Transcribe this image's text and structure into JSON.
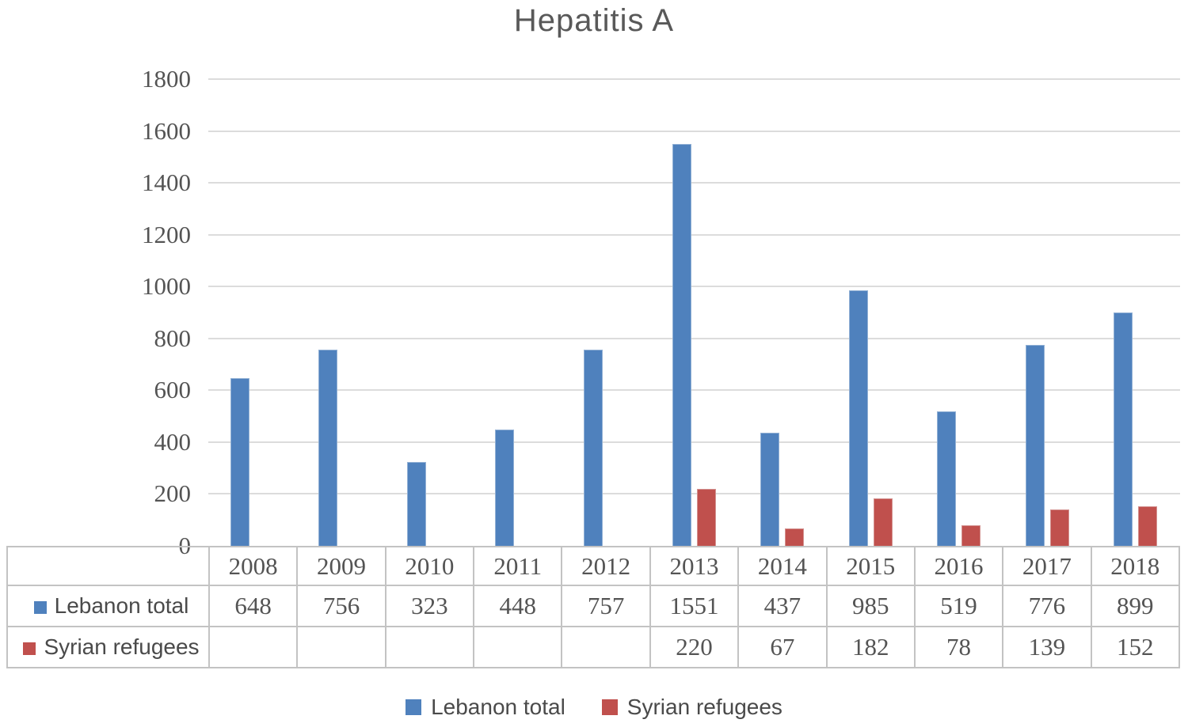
{
  "title": "Hepatitis A",
  "chart_data": {
    "type": "bar",
    "title": "Hepatitis A",
    "categories": [
      "2008",
      "2009",
      "2010",
      "2011",
      "2012",
      "2013",
      "2014",
      "2015",
      "2016",
      "2017",
      "2018"
    ],
    "series": [
      {
        "name": "Lebanon total",
        "color": "#4F81BD",
        "values": [
          648,
          756,
          323,
          448,
          757,
          1551,
          437,
          985,
          519,
          776,
          899
        ]
      },
      {
        "name": "Syrian refugees",
        "color": "#C0504D",
        "values": [
          null,
          null,
          null,
          null,
          null,
          220,
          67,
          182,
          78,
          139,
          152
        ]
      }
    ],
    "xlabel": "",
    "ylabel": "",
    "ylim": [
      0,
      1800
    ],
    "yticks": [
      0,
      200,
      400,
      600,
      800,
      1000,
      1200,
      1400,
      1600,
      1800
    ],
    "grid": true,
    "legend_position": "bottom",
    "data_table_shown": true
  },
  "legend": {
    "items": [
      {
        "label": "Lebanon total",
        "color": "#4F81BD"
      },
      {
        "label": "Syrian refugees",
        "color": "#C0504D"
      }
    ]
  },
  "colors": {
    "bar_blue": "#4F81BD",
    "bar_red": "#C0504D",
    "gridline": "#DCDCDC",
    "table_border": "#C3C3C3",
    "text_gray": "#595959"
  }
}
